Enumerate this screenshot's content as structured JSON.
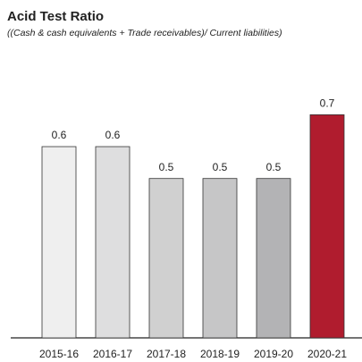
{
  "chart_data": {
    "type": "bar",
    "title": "Acid Test Ratio",
    "subtitle": "((Cash & cash equivalents + Trade receivables)/ Current liabilities)",
    "categories": [
      "2015-16",
      "2016-17",
      "2017-18",
      "2018-19",
      "2019-20",
      "2020-21"
    ],
    "values": [
      0.6,
      0.6,
      0.5,
      0.5,
      0.5,
      0.7
    ],
    "colors": [
      "#efefef",
      "#dededf",
      "#d0d0d0",
      "#c6c6c7",
      "#b3b3b5",
      "#b01c2e"
    ],
    "ylim": [
      0,
      1.06
    ]
  }
}
